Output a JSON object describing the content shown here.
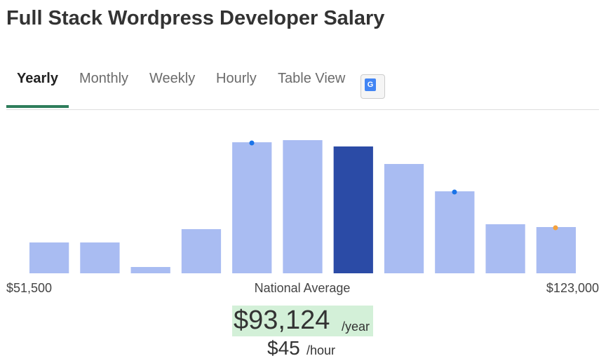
{
  "header": {
    "title": "Full Stack Wordpress Developer Salary"
  },
  "tabs": [
    "Yearly",
    "Monthly",
    "Weekly",
    "Hourly",
    "Table View"
  ],
  "chart_data": {
    "type": "bar",
    "values": [
      44,
      44,
      9,
      63,
      187,
      190,
      181,
      156,
      117,
      70,
      66
    ],
    "colors": [
      "#a9bcf2",
      "#a9bcf2",
      "#a9bcf2",
      "#a9bcf2",
      "#a9bcf2",
      "#a9bcf2",
      "#2b4ba6",
      "#a9bcf2",
      "#a9bcf2",
      "#a9bcf2",
      "#a9bcf2"
    ],
    "ylim": [
      0,
      200
    ],
    "min_label": "$51,500",
    "center_label": "National Average",
    "max_label": "$123,000"
  },
  "summary": {
    "amount": "$93,124",
    "unit": "/year",
    "hourly_amount": "$45",
    "hourly_unit": "/hour"
  }
}
